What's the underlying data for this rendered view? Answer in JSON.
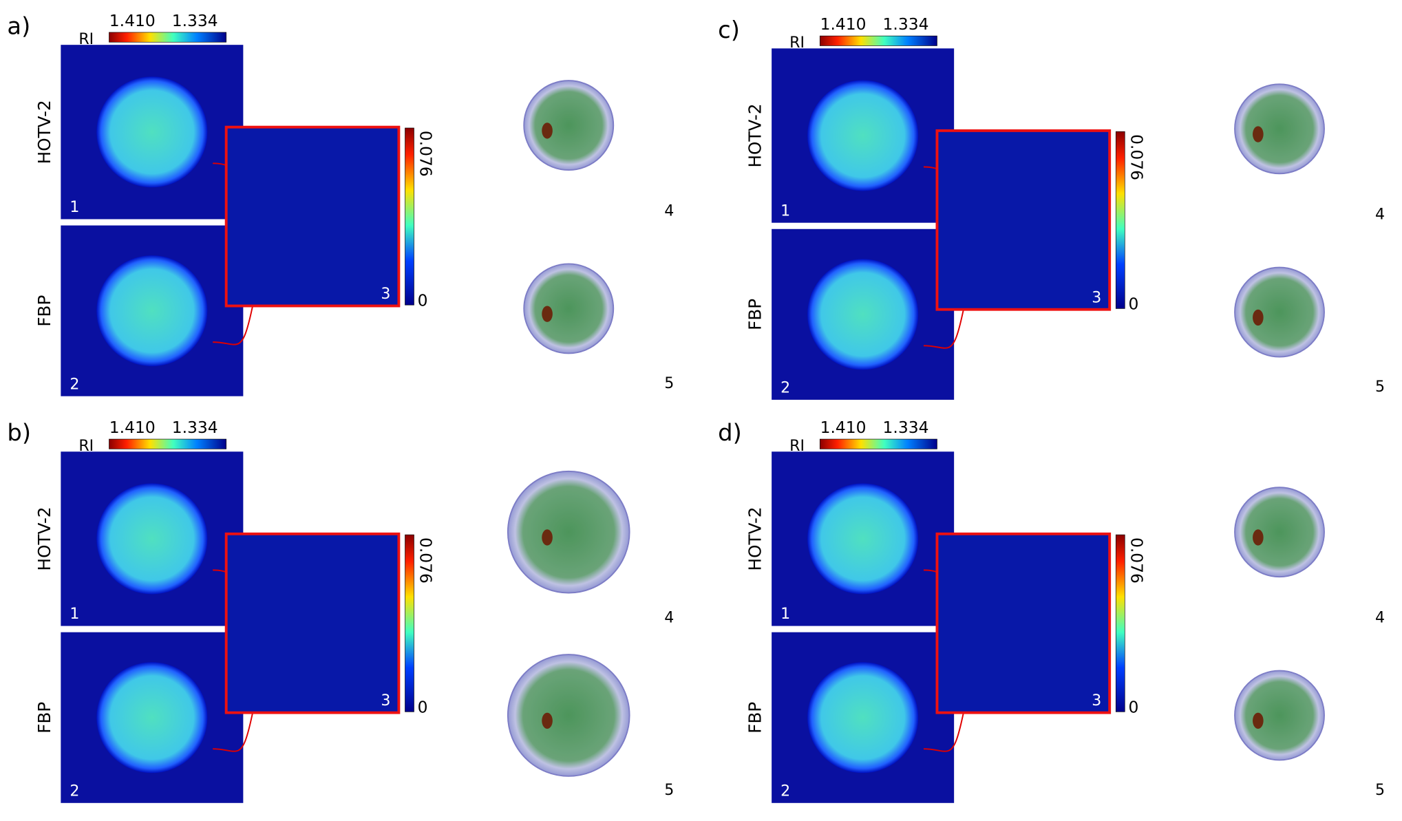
{
  "panels": [
    {
      "label": "a)",
      "colorbar": {
        "title": "RI",
        "max": "1.410",
        "min": "1.334"
      },
      "rows": [
        "HOTV-2",
        "FBP"
      ],
      "diff_colorbar": {
        "max": "0.076",
        "min": "0"
      },
      "insets": [
        "1",
        "2",
        "3",
        "4",
        "5"
      ]
    },
    {
      "label": "b)",
      "colorbar": {
        "title": "RI",
        "max": "1.410",
        "min": "1.334"
      },
      "rows": [
        "HOTV-2",
        "FBP"
      ],
      "diff_colorbar": {
        "max": "0.076",
        "min": "0"
      },
      "insets": [
        "1",
        "2",
        "3",
        "4",
        "5"
      ]
    },
    {
      "label": "c)",
      "colorbar": {
        "title": "RI",
        "max": "1.410",
        "min": "1.334"
      },
      "rows": [
        "HOTV-2",
        "FBP"
      ],
      "diff_colorbar": {
        "max": "0.076",
        "min": "0"
      },
      "insets": [
        "1",
        "2",
        "3",
        "4",
        "5"
      ]
    },
    {
      "label": "d)",
      "colorbar": {
        "title": "RI",
        "max": "1.410",
        "min": "1.334"
      },
      "rows": [
        "HOTV-2",
        "FBP"
      ],
      "diff_colorbar": {
        "max": "0.076",
        "min": "0"
      },
      "insets": [
        "1",
        "2",
        "3",
        "4",
        "5"
      ]
    }
  ]
}
